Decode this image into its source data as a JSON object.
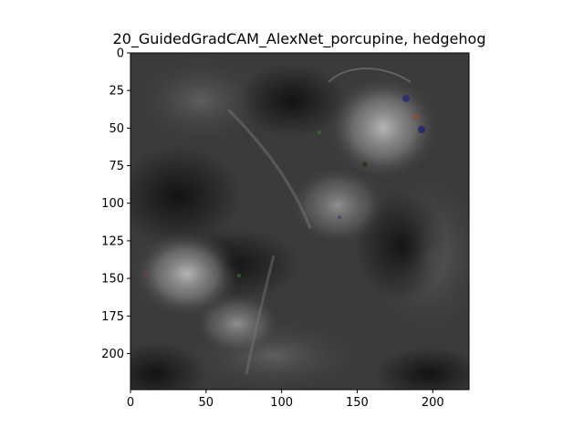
{
  "title": "20_GuidedGradCAM_AlexNet_porcupine, hedgehog",
  "image": {
    "description_name": "guided-gradcam-heatmap",
    "background_color": "#2a2a2a",
    "highlight_color": "#c8c8c8"
  },
  "axes": {
    "x_ticks": [
      {
        "value": 0,
        "label": "0"
      },
      {
        "value": 50,
        "label": "50"
      },
      {
        "value": 100,
        "label": "100"
      },
      {
        "value": 150,
        "label": "150"
      },
      {
        "value": 200,
        "label": "200"
      }
    ],
    "y_ticks": [
      {
        "value": 0,
        "label": "0"
      },
      {
        "value": 25,
        "label": "25"
      },
      {
        "value": 50,
        "label": "50"
      },
      {
        "value": 75,
        "label": "75"
      },
      {
        "value": 100,
        "label": "100"
      },
      {
        "value": 125,
        "label": "125"
      },
      {
        "value": 150,
        "label": "150"
      },
      {
        "value": 175,
        "label": "175"
      },
      {
        "value": 200,
        "label": "200"
      }
    ],
    "xlim": [
      0,
      224
    ],
    "ylim": [
      0,
      224
    ]
  }
}
